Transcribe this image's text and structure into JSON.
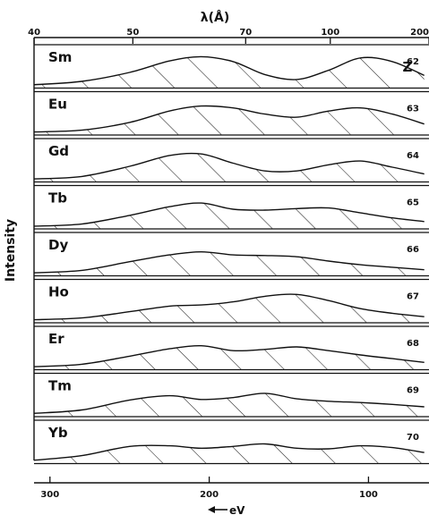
{
  "chart_data": {
    "type": "area",
    "title": "",
    "top_axis": {
      "label": "λ(Å)",
      "ticks": [
        {
          "value": 40,
          "label": "40"
        },
        {
          "value": 50,
          "label": "50"
        },
        {
          "value": 70,
          "label": "70"
        },
        {
          "value": 100,
          "label": "100"
        },
        {
          "value": 200,
          "label": "200"
        }
      ],
      "scale": "reciprocal"
    },
    "bottom_axis": {
      "label": "eV",
      "arrow": "←",
      "ticks": [
        {
          "value": 300,
          "label": "300"
        },
        {
          "value": 200,
          "label": "200"
        },
        {
          "value": 100,
          "label": "100"
        }
      ],
      "xlim": [
        310,
        62
      ]
    },
    "ylabel": "Intensity",
    "z_header": "Z",
    "hatched_fill": true,
    "ylim": [
      0,
      1
    ],
    "series": [
      {
        "name": "Sm",
        "z": "62",
        "x": [
          310,
          280,
          250,
          225,
          205,
          185,
          165,
          145,
          125,
          105,
          85,
          65
        ],
        "values": [
          0.05,
          0.16,
          0.45,
          0.82,
          0.96,
          0.8,
          0.38,
          0.22,
          0.52,
          0.92,
          0.8,
          0.35
        ]
      },
      {
        "name": "Eu",
        "z": "63",
        "x": [
          310,
          280,
          250,
          225,
          205,
          185,
          165,
          145,
          125,
          105,
          85,
          65
        ],
        "values": [
          0.04,
          0.1,
          0.35,
          0.72,
          0.88,
          0.82,
          0.62,
          0.52,
          0.72,
          0.82,
          0.62,
          0.3
        ]
      },
      {
        "name": "Gd",
        "z": "64",
        "x": [
          310,
          280,
          250,
          225,
          205,
          185,
          165,
          145,
          125,
          105,
          85,
          65
        ],
        "values": [
          0.04,
          0.12,
          0.45,
          0.8,
          0.85,
          0.55,
          0.3,
          0.3,
          0.5,
          0.62,
          0.42,
          0.2
        ]
      },
      {
        "name": "Tb",
        "z": "65",
        "x": [
          310,
          280,
          250,
          225,
          205,
          185,
          165,
          145,
          125,
          105,
          85,
          65
        ],
        "values": [
          0.03,
          0.1,
          0.38,
          0.66,
          0.78,
          0.58,
          0.55,
          0.6,
          0.62,
          0.46,
          0.3,
          0.18
        ]
      },
      {
        "name": "Dy",
        "z": "66",
        "x": [
          310,
          280,
          250,
          225,
          205,
          185,
          165,
          145,
          125,
          105,
          85,
          65
        ],
        "values": [
          0.04,
          0.12,
          0.4,
          0.62,
          0.72,
          0.62,
          0.6,
          0.56,
          0.42,
          0.3,
          0.22,
          0.14
        ]
      },
      {
        "name": "Ho",
        "z": "67",
        "x": [
          310,
          280,
          250,
          225,
          205,
          185,
          165,
          145,
          125,
          105,
          85,
          65
        ],
        "values": [
          0.04,
          0.1,
          0.3,
          0.48,
          0.52,
          0.62,
          0.8,
          0.86,
          0.66,
          0.4,
          0.25,
          0.14
        ]
      },
      {
        "name": "Er",
        "z": "68",
        "x": [
          310,
          280,
          250,
          225,
          205,
          185,
          165,
          145,
          125,
          105,
          85,
          65
        ],
        "values": [
          0.04,
          0.12,
          0.38,
          0.62,
          0.72,
          0.56,
          0.6,
          0.68,
          0.56,
          0.42,
          0.3,
          0.18
        ]
      },
      {
        "name": "Tm",
        "z": "69",
        "x": [
          310,
          280,
          250,
          225,
          205,
          185,
          165,
          145,
          125,
          105,
          85,
          65
        ],
        "values": [
          0.05,
          0.16,
          0.48,
          0.62,
          0.5,
          0.56,
          0.7,
          0.52,
          0.44,
          0.4,
          0.34,
          0.26
        ]
      },
      {
        "name": "Yb",
        "z": "70",
        "x": [
          310,
          280,
          250,
          225,
          205,
          185,
          165,
          145,
          125,
          105,
          85,
          65
        ],
        "values": [
          0.05,
          0.2,
          0.5,
          0.52,
          0.44,
          0.5,
          0.58,
          0.44,
          0.42,
          0.52,
          0.46,
          0.3
        ]
      }
    ]
  }
}
